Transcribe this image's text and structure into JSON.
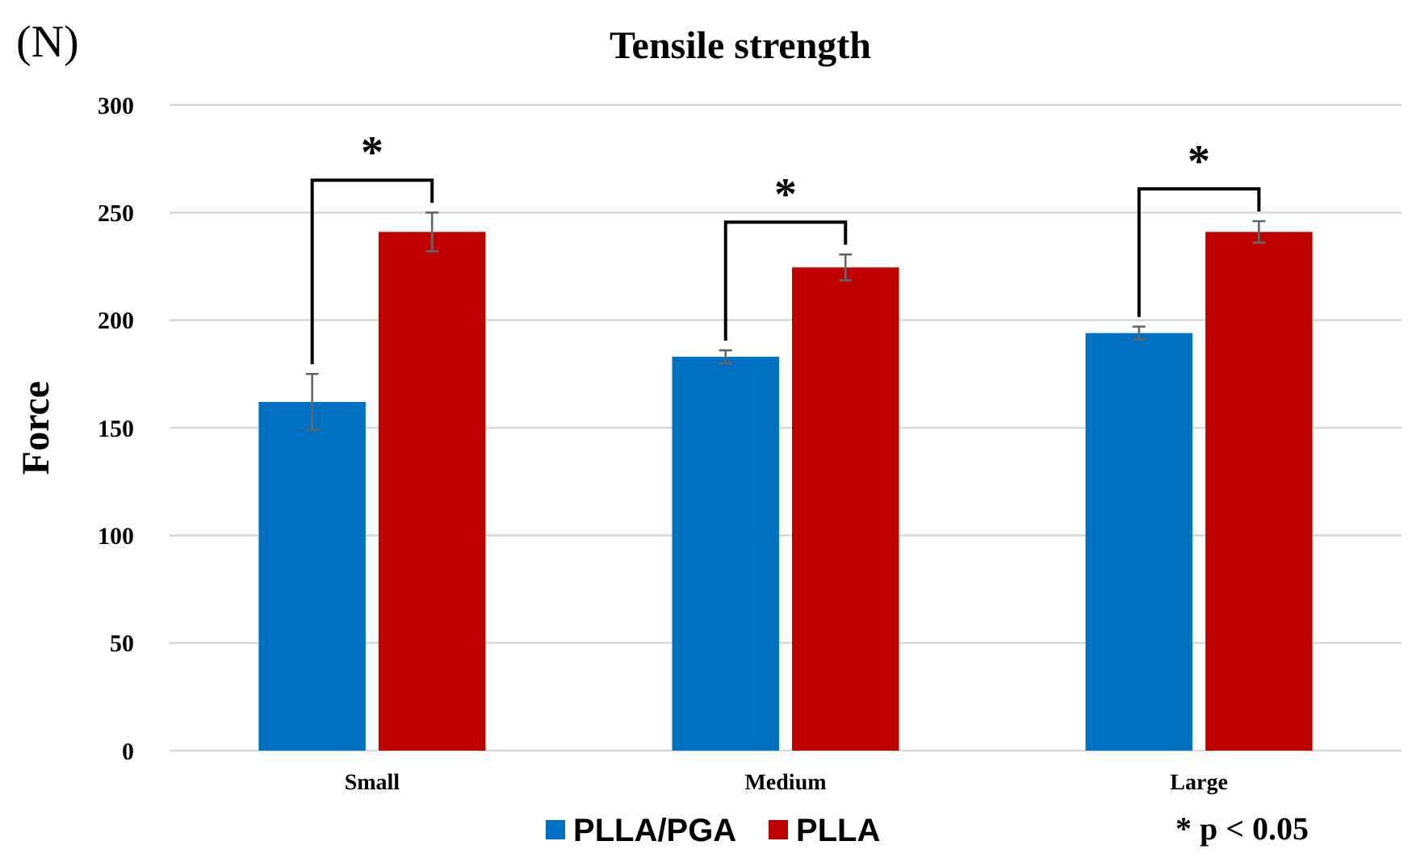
{
  "chart_data": {
    "type": "bar",
    "title": "Tensile strength",
    "ylabel": "Force",
    "categories": [
      "Small",
      "Medium",
      "Large"
    ],
    "series": [
      {
        "name": "PLLA/PGA",
        "color": "#0070c0",
        "values": [
          162,
          183,
          194
        ],
        "errors": [
          13,
          3,
          3
        ]
      },
      {
        "name": "PLLA",
        "color": "#c00000",
        "values": [
          241,
          224.5,
          241
        ],
        "errors": [
          9,
          6,
          5
        ]
      }
    ],
    "ylim": [
      0,
      300
    ],
    "yticks": [
      0,
      50,
      100,
      150,
      200,
      250,
      300
    ],
    "grid": "y",
    "legend": "bottom",
    "annotations": [
      "(N)",
      "* p < 0.05",
      "*",
      "*",
      "*"
    ]
  }
}
